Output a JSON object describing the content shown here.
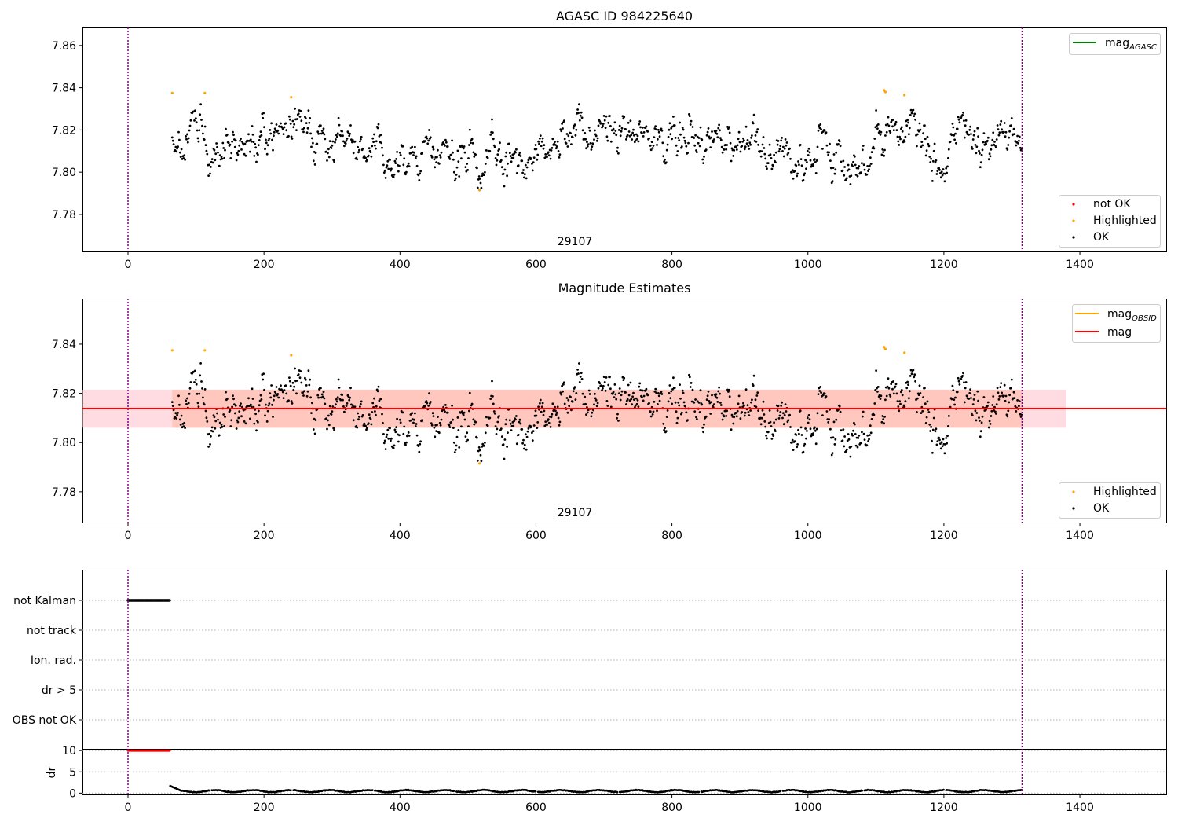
{
  "colors": {
    "ok": "#000000",
    "highlighted": "#ffa500",
    "not_ok": "#ff0000",
    "mag_agasc_line": "#008000",
    "mag_obsid_line": "#ffa500",
    "mag_line": "#ff0000",
    "band_mag": "#ffc0cb",
    "band_obsid": "#ffa07a",
    "obsid_boundary": "#800080"
  },
  "chart_data": [
    {
      "type": "scatter",
      "title": "AGASC ID 984225640",
      "xlabel": "",
      "ylabel": "",
      "xlim": [
        -67,
        1527
      ],
      "ylim": [
        7.7625,
        7.8685
      ],
      "xticks": [
        "0",
        "200",
        "400",
        "600",
        "800",
        "1000",
        "1200",
        "1400"
      ],
      "yticks": [
        "7.78",
        "7.80",
        "7.82",
        "7.84",
        "7.86"
      ],
      "obsid_label": "29107",
      "obsid_label_x": 660,
      "obsid_boundaries": [
        0,
        1315
      ],
      "data_x_range": [
        65,
        1315
      ],
      "mean_mag": 7.814,
      "noise_sd": 0.0075,
      "highlighted_points": [
        [
          65,
          7.8375
        ],
        [
          113,
          7.8375
        ],
        [
          240,
          7.8355
        ],
        [
          517,
          7.7915
        ],
        [
          1112,
          7.8388
        ],
        [
          1114,
          7.838
        ],
        [
          1142,
          7.8365
        ]
      ],
      "legend_upper": {
        "position": "top-right",
        "entries": [
          "mag_AGASC"
        ]
      },
      "legend_lower": {
        "position": "bottom-right",
        "entries": [
          "not OK",
          "Highlighted",
          "OK"
        ]
      }
    },
    {
      "type": "scatter",
      "title": "Magnitude Estimates",
      "xlabel": "",
      "ylabel": "",
      "xlim": [
        -67,
        1527
      ],
      "ylim": [
        7.7675,
        7.8585
      ],
      "xticks": [
        "0",
        "200",
        "400",
        "600",
        "800",
        "1000",
        "1200",
        "1400"
      ],
      "yticks": [
        "7.78",
        "7.80",
        "7.82",
        "7.84"
      ],
      "obsid_label": "29107",
      "obsid_label_x": 660,
      "obsid_boundaries": [
        0,
        1315
      ],
      "mag_line": {
        "value": 7.8138,
        "x": [
          -67,
          1527
        ]
      },
      "mag_band": {
        "low": 7.806,
        "high": 7.8215,
        "x": [
          -67,
          1380
        ]
      },
      "mag_obsid_band": {
        "low": 7.806,
        "high": 7.8215,
        "x": [
          65,
          1315
        ]
      },
      "legend_upper": {
        "position": "top-right",
        "entries": [
          "mag_OBSID",
          "mag"
        ]
      },
      "legend_lower": {
        "position": "bottom-right",
        "entries": [
          "Highlighted",
          "OK"
        ]
      }
    },
    {
      "type": "scatter",
      "title": "",
      "xlabel": "",
      "ylabel": "",
      "xlim": [
        -67,
        1527
      ],
      "flag_categories": [
        "not Kalman",
        "not track",
        "Ion. rad.",
        "dr > 5",
        "OBS not OK"
      ],
      "flag_ranges": {
        "not Kalman": [
          0,
          62
        ]
      },
      "obsid_boundaries": [
        0,
        1315
      ]
    },
    {
      "type": "scatter",
      "title": "",
      "xlabel": "",
      "ylabel": "dr",
      "xlim": [
        -67,
        1527
      ],
      "ylim": [
        -0.3,
        10.4
      ],
      "xticks": [
        "0",
        "200",
        "400",
        "600",
        "800",
        "1000",
        "1200",
        "1400"
      ],
      "yticks": [
        "0",
        "5",
        "10"
      ],
      "clipped_value": 10,
      "clipped_x_range": [
        0,
        62
      ],
      "dr_x_range": [
        62,
        1315
      ],
      "dr_typical": 0.4,
      "dr_start_peak": 1.7,
      "obsid_boundaries": [
        0,
        1315
      ]
    }
  ],
  "legends": {
    "mag_agasc": {
      "base": "mag",
      "sub": "AGASC"
    },
    "mag_obsid": {
      "base": "mag",
      "sub": "OBSID"
    },
    "mag": "mag",
    "not_ok": "not OK",
    "highlighted": "Highlighted",
    "ok": "OK"
  }
}
